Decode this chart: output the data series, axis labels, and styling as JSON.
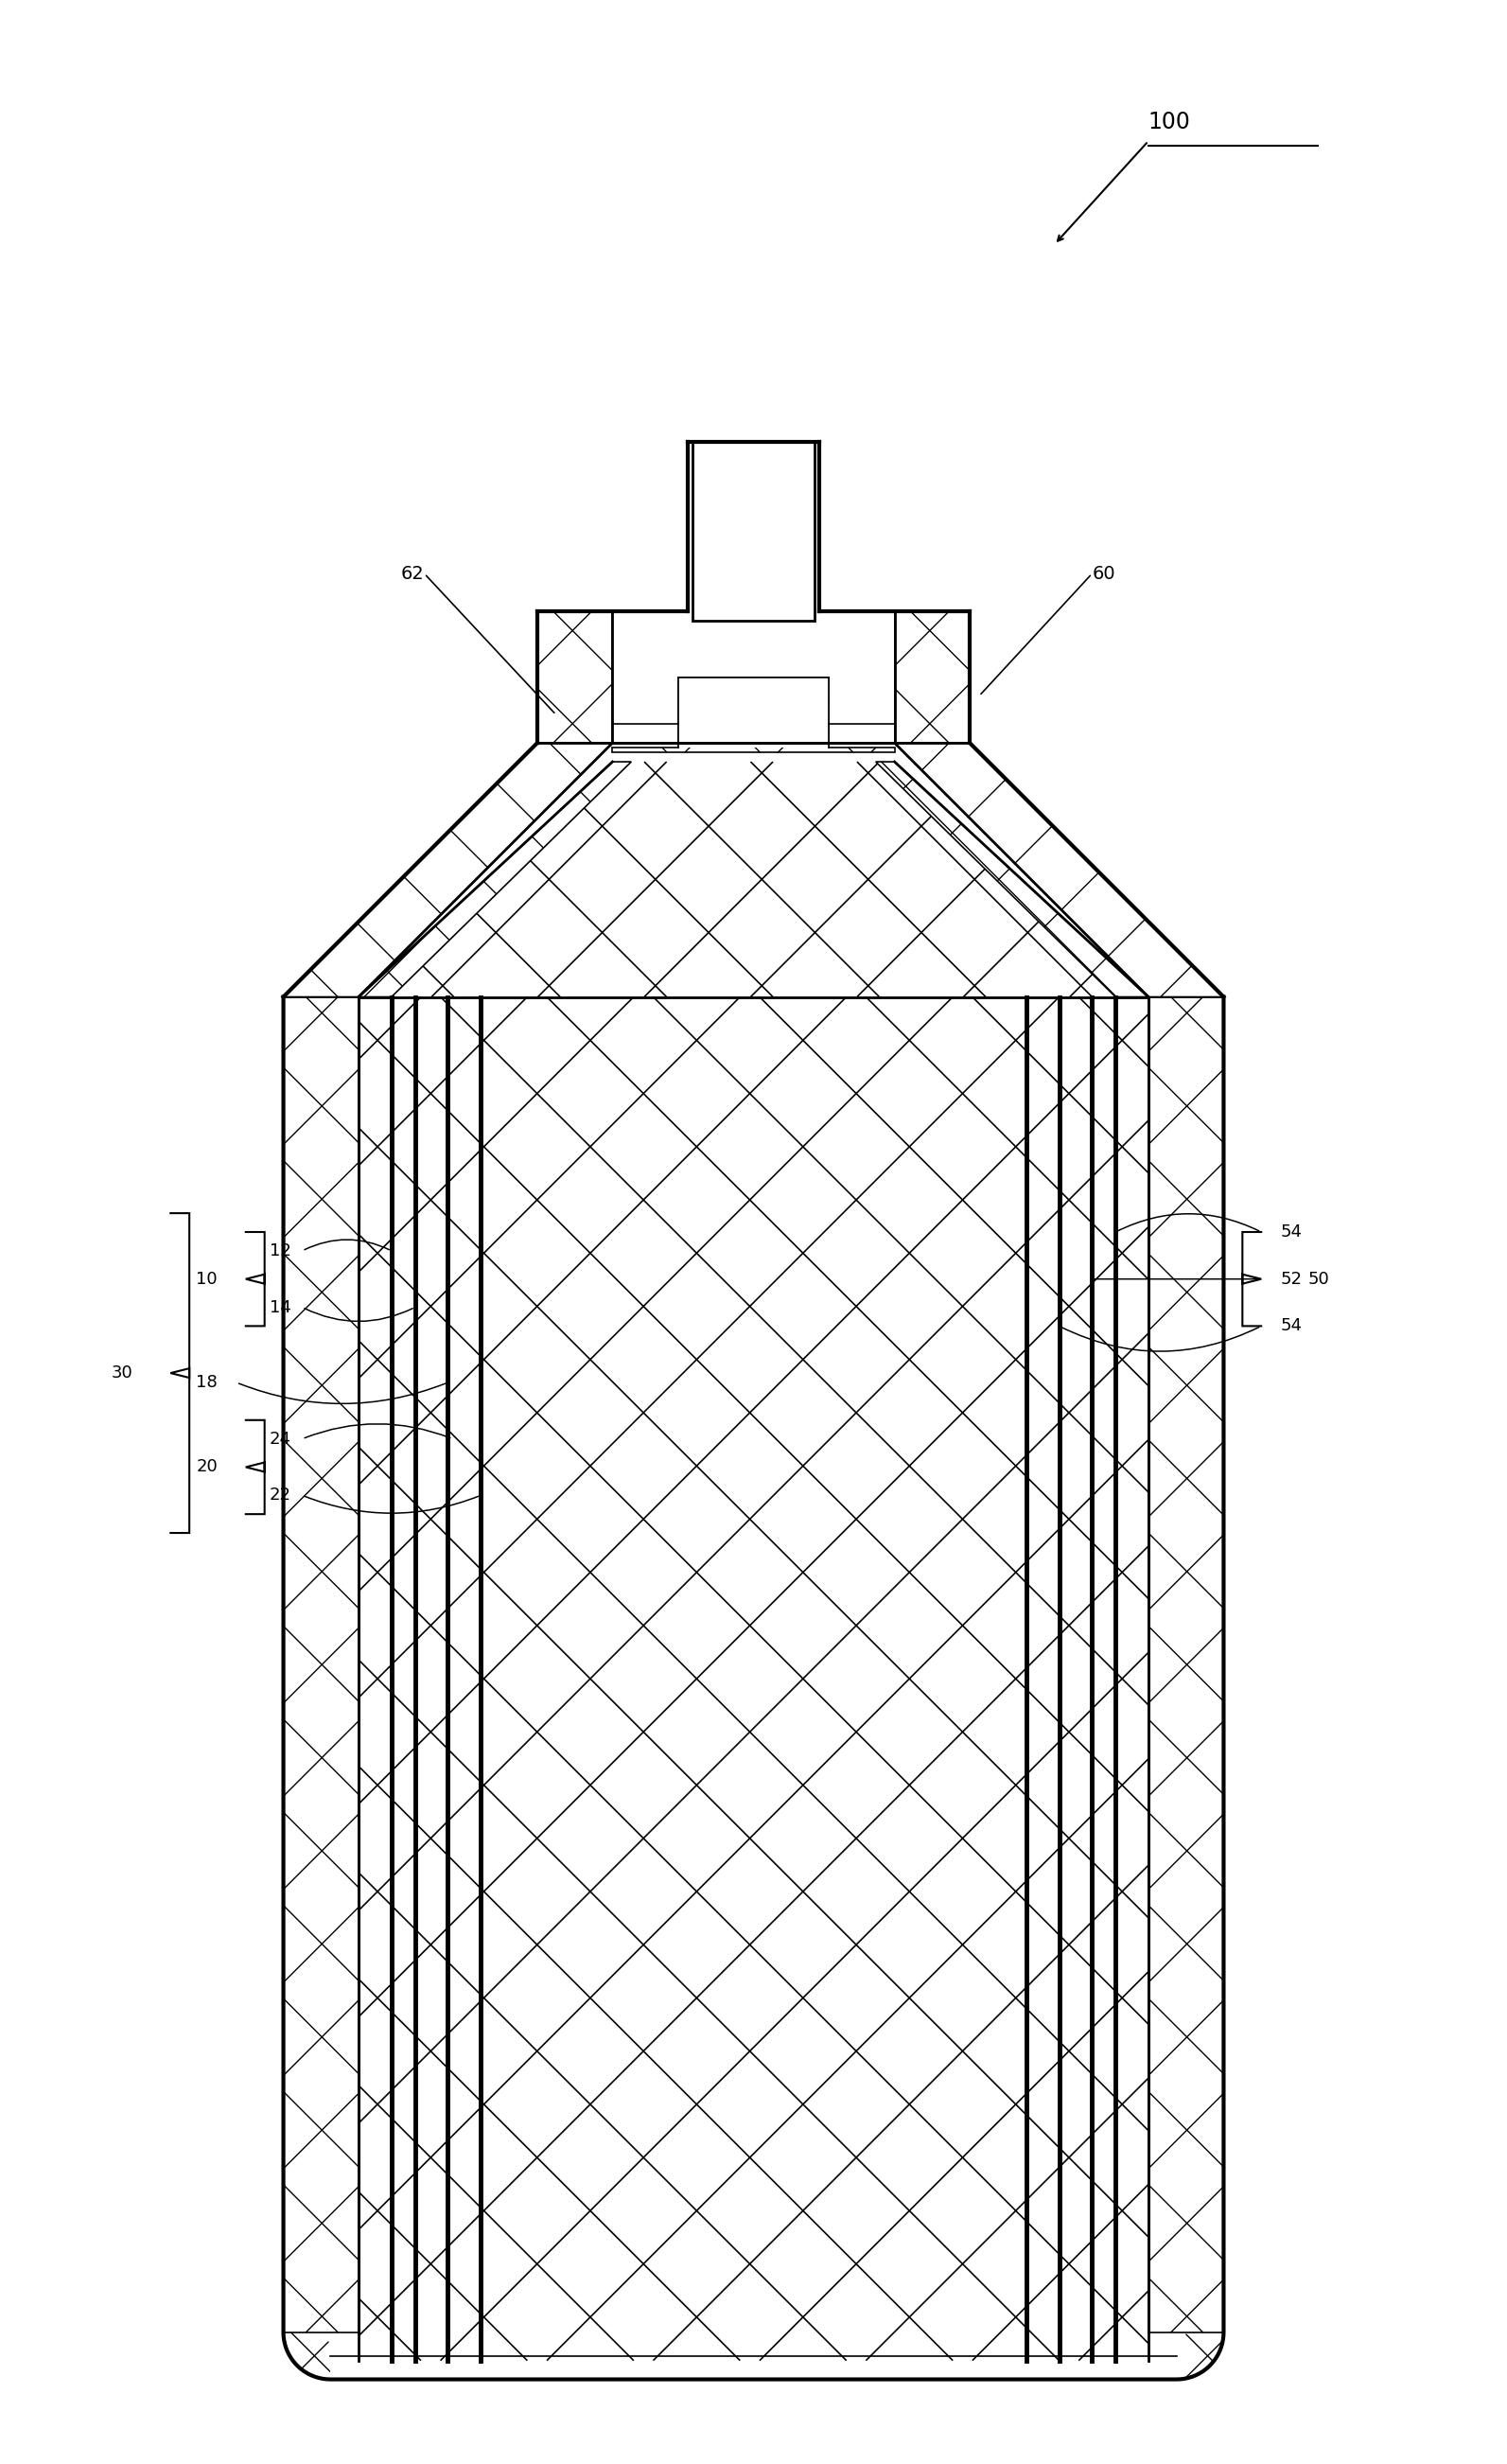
{
  "fig_width": 15.93,
  "fig_height": 26.04,
  "bg_color": "#ffffff",
  "label_100": "100",
  "label_60": "60",
  "label_62": "62",
  "label_10": "10",
  "label_12": "12",
  "label_14": "14",
  "label_18": "18",
  "label_20": "20",
  "label_22": "22",
  "label_24": "24",
  "label_30": "30",
  "label_50": "50",
  "label_52": "52",
  "label_54a": "54",
  "label_54b": "54"
}
